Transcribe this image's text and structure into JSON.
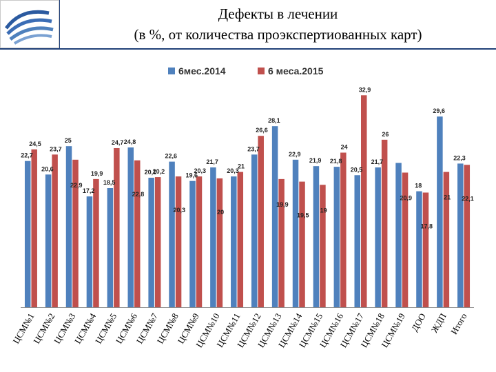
{
  "header": {
    "title_line1": "Дефекты  в лечении",
    "title_line2": "(в %, от количества проэкспертиованных карт)",
    "accent_color": "#1f3f77"
  },
  "chart_data": {
    "type": "bar",
    "legend_position": "top-center",
    "grid": false,
    "ylim": [
      0,
      34
    ],
    "categories": [
      "ЦСМ№1",
      "ЦСМ№2",
      "ЦСМ№3",
      "ЦСМ№4",
      "ЦСМ№5",
      "ЦСМ№6",
      "ЦСМ№7",
      "ЦСМ№8",
      "ЦСМ№9",
      "ЦСМ№10",
      "ЦСМ№11",
      "ЦСМ№12",
      "ЦСМ№13",
      "ЦСМ№14",
      "ЦСМ№15",
      "ЦСМ№16",
      "ЦСМ№17",
      "ЦСМ№18",
      "ЦСМ№19",
      "ДОО",
      "ЖДП",
      "Итого"
    ],
    "series": [
      {
        "name": "6мес.2014",
        "color": "#4f81bd",
        "values": [
          22.7,
          20.6,
          25,
          17.2,
          18.5,
          24.8,
          20.1,
          22.6,
          19.6,
          21.7,
          20.3,
          23.7,
          28.1,
          22.9,
          21.9,
          21.8,
          20.5,
          21.7,
          22.4,
          18,
          29.6,
          22.3
        ],
        "labels": [
          "22,7",
          "20,6",
          "25",
          "17,2",
          "18,5",
          "24,8",
          "20,1",
          "22,6",
          "19,6",
          "21,7",
          "20,3",
          "23,7",
          "28,1",
          "22,9",
          "21,9",
          "21,8",
          "20,5",
          "21,7",
          "",
          "18",
          "29,6",
          "22,3"
        ]
      },
      {
        "name": "6 меса.2015",
        "color": "#c0504d",
        "values": [
          24.5,
          23.7,
          22.9,
          19.9,
          24.7,
          22.8,
          20.2,
          20.3,
          20.3,
          20,
          21,
          26.6,
          19.9,
          19.5,
          19,
          24,
          32.9,
          26,
          20.9,
          17.8,
          21,
          22.1
        ],
        "labels": [
          "24,5",
          "23,7",
          "22,9",
          "19,9",
          "24,7",
          "22,8",
          "20,2",
          "20,3",
          "20,3",
          "20",
          "21",
          "26,6",
          "19,9",
          "19,5",
          "19",
          "24",
          "32,9",
          "26",
          "20,9",
          "17,8",
          "21",
          "22,1"
        ]
      }
    ]
  }
}
